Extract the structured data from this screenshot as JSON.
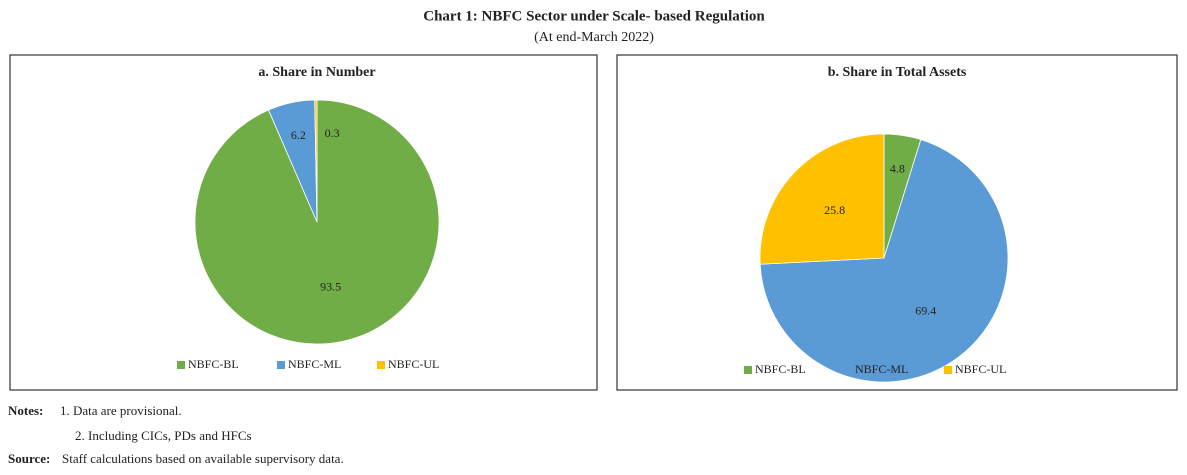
{
  "title": "Chart 1: NBFC Sector under Scale- based Regulation",
  "subtitle": "(At end-March 2022)",
  "chart_data": [
    {
      "type": "pie",
      "title": "a. Share in Number",
      "categories": [
        "NBFC-BL",
        "NBFC-ML",
        "NBFC-UL"
      ],
      "values": [
        93.5,
        6.2,
        0.3
      ],
      "colors": [
        "#70ad47",
        "#5b9bd5",
        "#ffc000"
      ],
      "legend": "bottom"
    },
    {
      "type": "pie",
      "title": "b. Share in Total Assets",
      "categories": [
        "NBFC-BL",
        "NBFC-ML",
        "NBFC-UL"
      ],
      "values": [
        4.8,
        69.4,
        25.8
      ],
      "colors": [
        "#70ad47",
        "#5b9bd5",
        "#ffc000"
      ],
      "legend": "bottom"
    }
  ],
  "notes": {
    "label": "Notes:",
    "items": [
      "1. Data are provisional.",
      "2. Including CICs, PDs and HFCs"
    ]
  },
  "source": {
    "label": "Source:",
    "text": "Staff calculations based on available supervisory data."
  }
}
